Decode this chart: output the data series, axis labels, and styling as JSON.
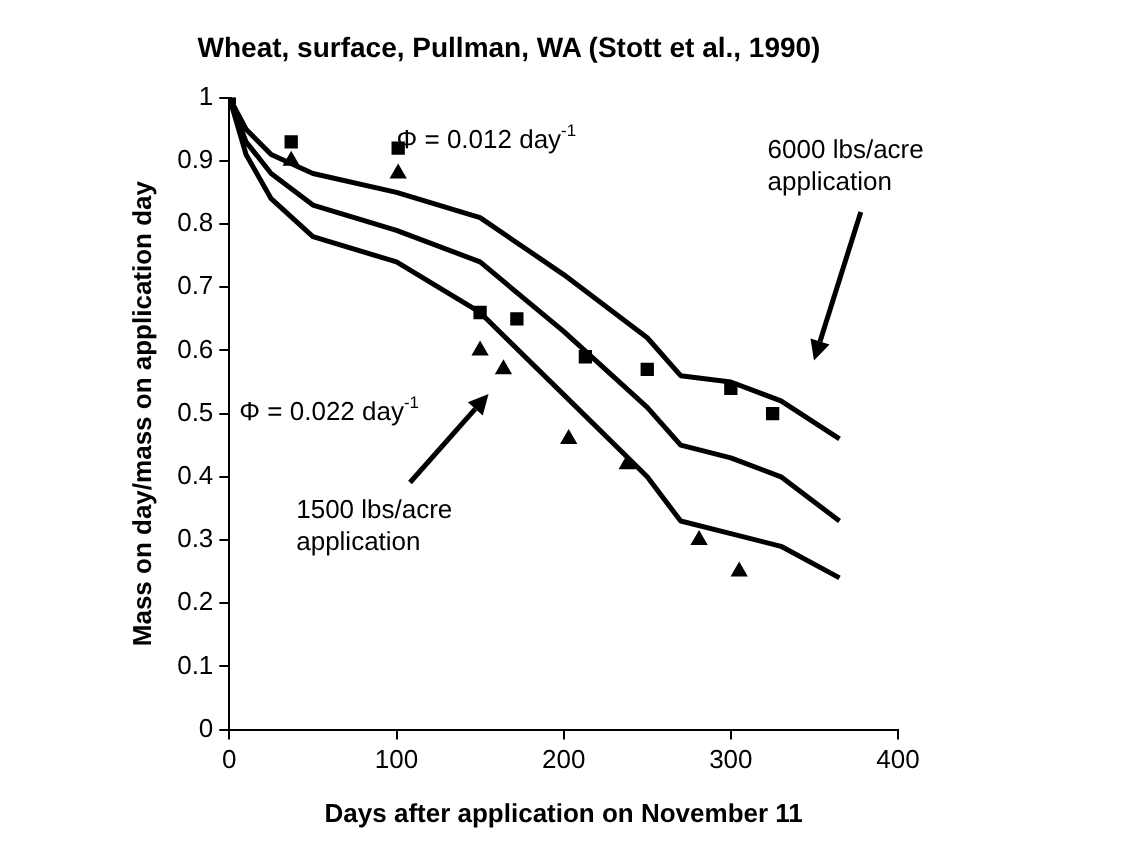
{
  "chart_data": {
    "type": "scatter",
    "title": "Wheat, surface, Pullman, WA (Stott et al., 1990)",
    "xlabel": "Days after application on November 11",
    "ylabel": "Mass on day/mass on application day",
    "xlim": [
      0,
      400
    ],
    "xticks": [
      0,
      100,
      200,
      300,
      400
    ],
    "ylim": [
      0,
      1
    ],
    "yticks": [
      0,
      0.1,
      0.2,
      0.3,
      0.4,
      0.5,
      0.6,
      0.7,
      0.8,
      0.9,
      1
    ],
    "grid": false,
    "legend": false,
    "series": [
      {
        "type": "line",
        "marker": "none",
        "color": "#000000",
        "x": [
          0,
          10,
          25,
          50,
          100,
          150,
          200,
          250,
          270,
          300,
          330,
          365
        ],
        "values": [
          1,
          0.95,
          0.91,
          0.88,
          0.85,
          0.81,
          0.72,
          0.62,
          0.56,
          0.55,
          0.52,
          0.46
        ]
      },
      {
        "type": "line",
        "marker": "none",
        "color": "#000000",
        "x": [
          0,
          10,
          25,
          50,
          100,
          150,
          200,
          250,
          270,
          300,
          330,
          365
        ],
        "values": [
          1,
          0.93,
          0.88,
          0.83,
          0.79,
          0.74,
          0.63,
          0.51,
          0.45,
          0.43,
          0.4,
          0.33
        ]
      },
      {
        "type": "line",
        "marker": "none",
        "color": "#000000",
        "x": [
          0,
          10,
          25,
          50,
          100,
          150,
          200,
          250,
          270,
          300,
          330,
          365
        ],
        "values": [
          1,
          0.91,
          0.84,
          0.78,
          0.74,
          0.66,
          0.53,
          0.4,
          0.33,
          0.31,
          0.29,
          0.24
        ]
      },
      {
        "marker": "triangle",
        "color": "#000000",
        "x": [
          37,
          101,
          150,
          164,
          203,
          238,
          281,
          305
        ],
        "values": [
          0.9,
          0.88,
          0.6,
          0.57,
          0.46,
          0.42,
          0.3,
          0.25
        ]
      },
      {
        "marker": "square",
        "color": "#000000",
        "x": [
          0,
          37,
          101,
          150,
          172,
          213,
          250,
          300,
          325
        ],
        "values": [
          1,
          0.93,
          0.92,
          0.66,
          0.65,
          0.59,
          0.57,
          0.54,
          0.5
        ]
      }
    ],
    "annotations": [
      "Φ = 0.012 day$^{-1}$",
      "Φ = 0.022 day$^{-1}$",
      "6000 lbs/acre application",
      "1500 lbs/acre application"
    ]
  }
}
